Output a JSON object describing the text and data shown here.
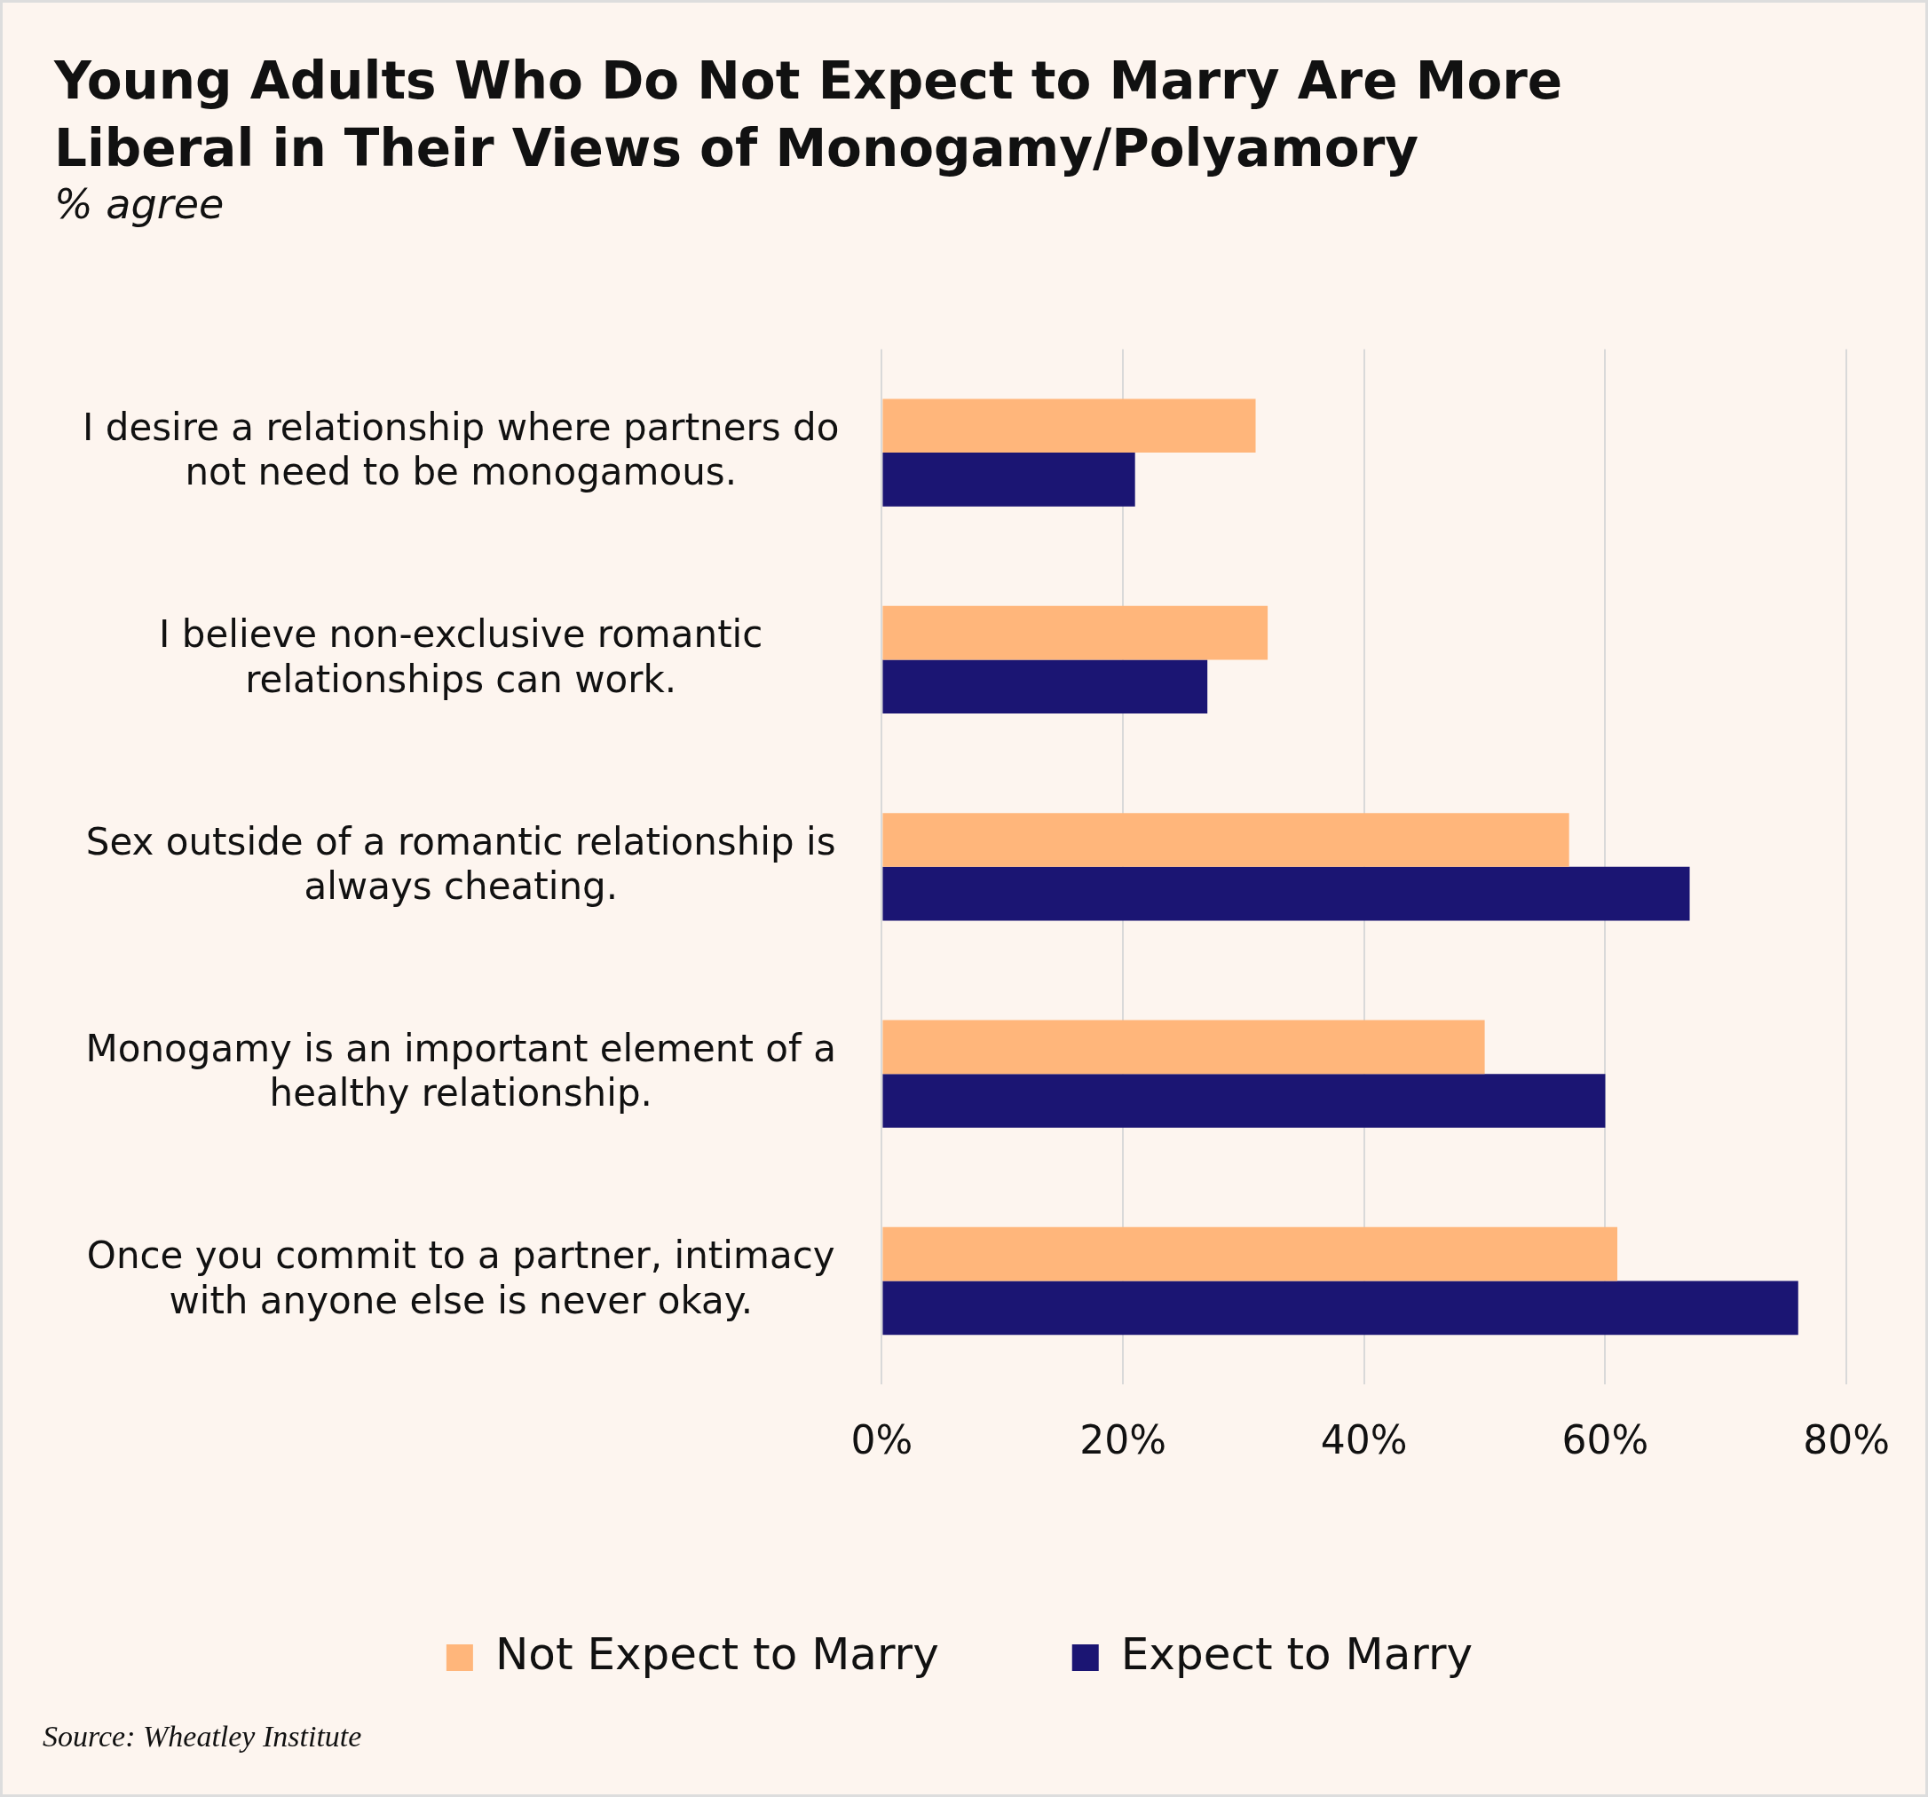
{
  "chart_data": {
    "type": "bar",
    "orientation": "horizontal",
    "title": "Young Adults Who Do Not Expect to Marry Are More Liberal in Their Views of Monogamy/Polyamory",
    "subtitle": "% agree",
    "categories": [
      "I desire a relationship where partners do not need to be monogamous.",
      "I believe non-exclusive romantic relationships can work.",
      "Sex outside of a romantic relationship is always cheating.",
      "Monogamy is an important element of a healthy relationship.",
      "Once you commit to a partner, intimacy with anyone else is never okay."
    ],
    "series": [
      {
        "name": "Not Expect to Marry",
        "color": "#ffb67b",
        "values": [
          31,
          32,
          57,
          50,
          61
        ]
      },
      {
        "name": "Expect to Marry",
        "color": "#1b1573",
        "values": [
          21,
          27,
          67,
          60,
          76
        ]
      }
    ],
    "xlim": [
      0,
      80
    ],
    "xticks": [
      {
        "value": 0,
        "label": "0%"
      },
      {
        "value": 20,
        "label": "20%"
      },
      {
        "value": 40,
        "label": "40%"
      },
      {
        "value": 60,
        "label": "60%"
      },
      {
        "value": 80,
        "label": "80%"
      }
    ],
    "grid": "x",
    "legend": "bottom",
    "annotations": [
      "Source: Wheatley Institute"
    ]
  }
}
